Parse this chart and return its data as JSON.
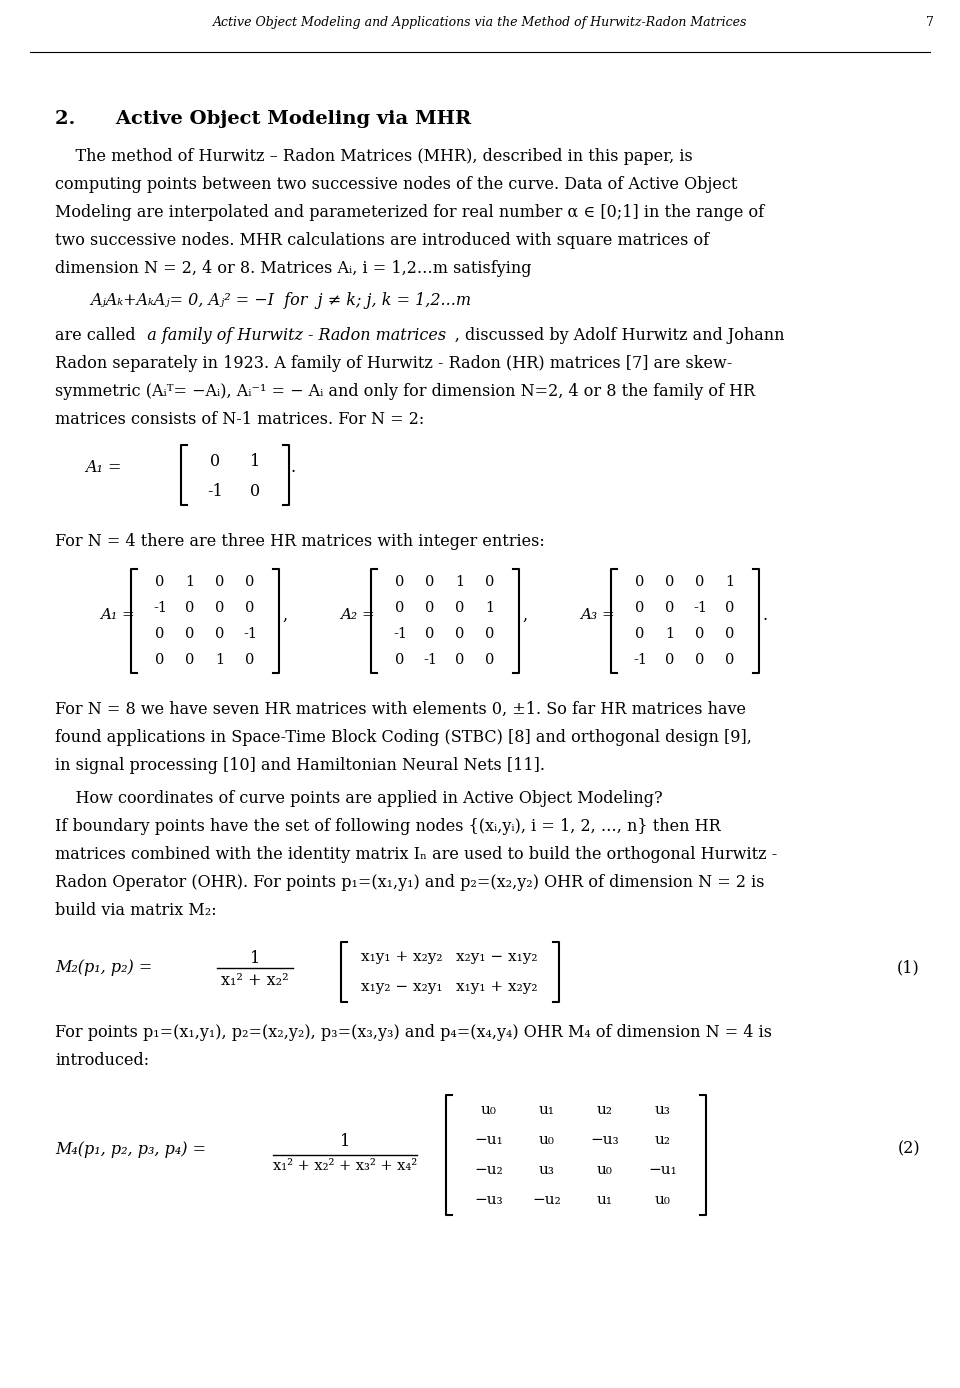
{
  "header_text": "Active Object Modeling and Applications via the Method of Hurwitz-Radon Matrices",
  "header_page": "7",
  "bg_color": "#ffffff",
  "text_color": "#000000",
  "matrix_N2": [
    [
      0,
      1
    ],
    [
      -1,
      0
    ]
  ],
  "matrix_A1_4x4": [
    [
      0,
      1,
      0,
      0
    ],
    [
      -1,
      0,
      0,
      0
    ],
    [
      0,
      0,
      0,
      -1
    ],
    [
      0,
      0,
      1,
      0
    ]
  ],
  "matrix_A2_4x4": [
    [
      0,
      0,
      1,
      0
    ],
    [
      0,
      0,
      0,
      1
    ],
    [
      -1,
      0,
      0,
      0
    ],
    [
      0,
      -1,
      0,
      0
    ]
  ],
  "matrix_A3_4x4": [
    [
      0,
      0,
      0,
      1
    ],
    [
      0,
      0,
      -1,
      0
    ],
    [
      0,
      1,
      0,
      0
    ],
    [
      -1,
      0,
      0,
      0
    ]
  ],
  "eq_number1": "(1)",
  "eq_number2": "(2)"
}
